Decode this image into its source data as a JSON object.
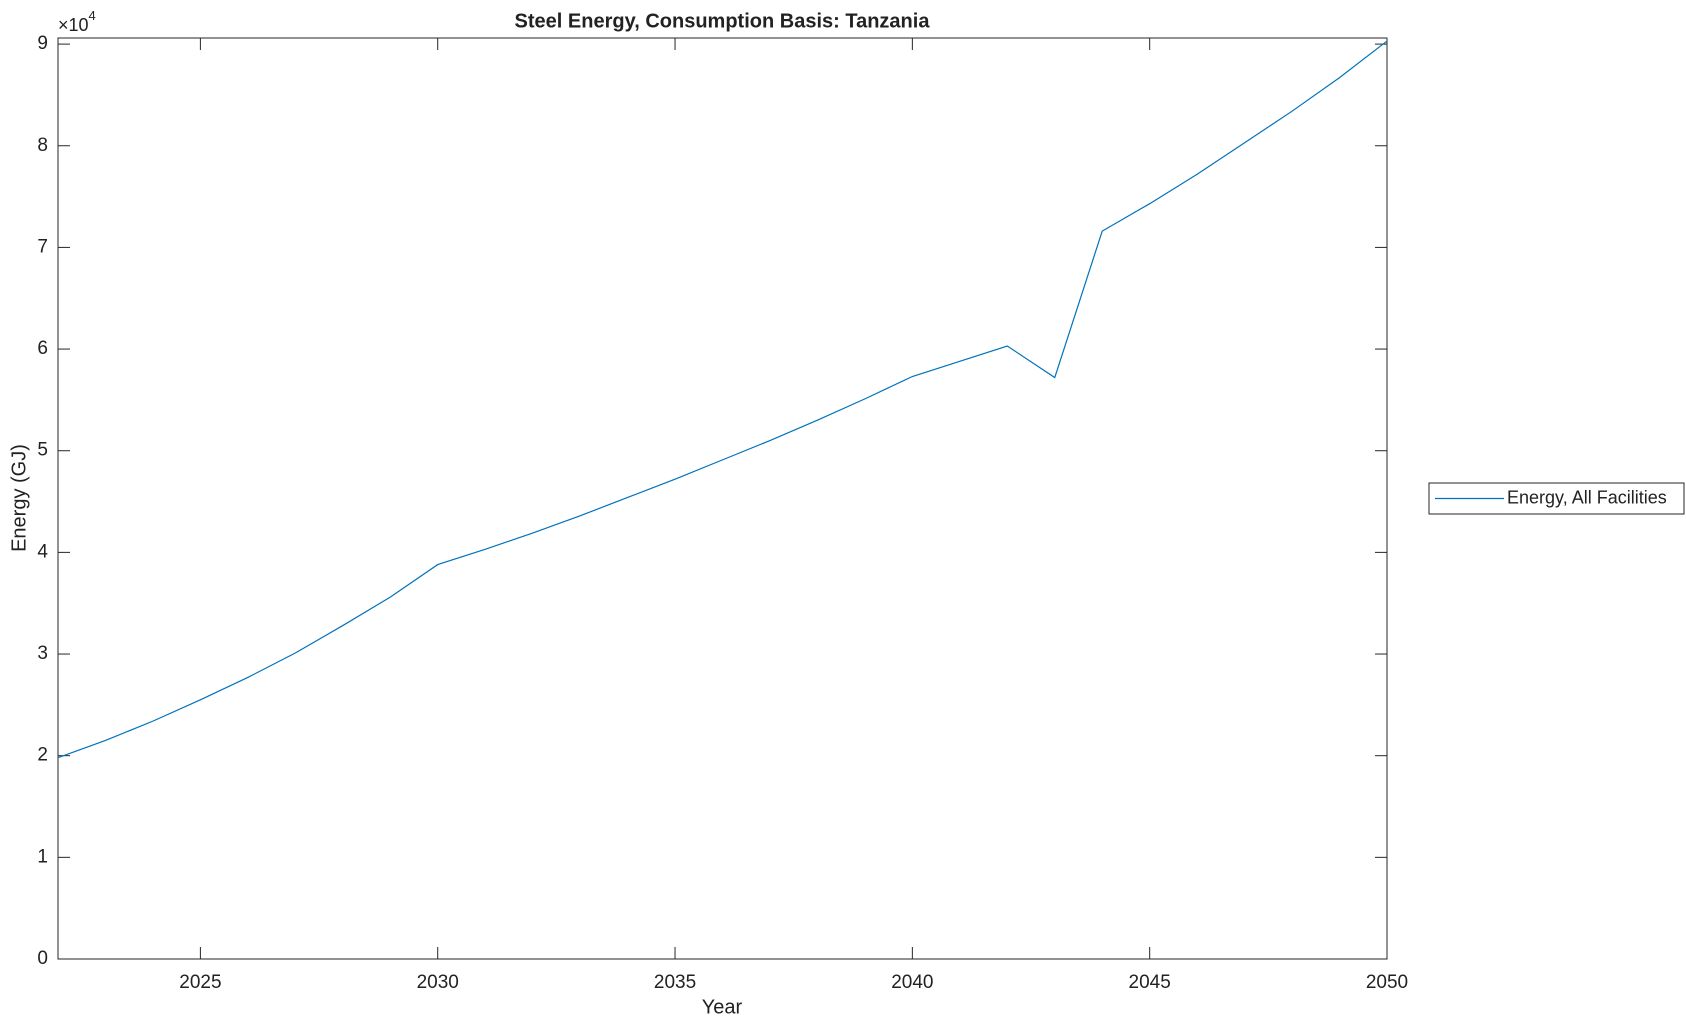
{
  "chart_data": {
    "type": "line",
    "title": "Steel Energy, Consumption Basis: Tanzania",
    "x_label": "Year",
    "y_label": "Energy (GJ)",
    "y_multiplier": {
      "base": "×10",
      "exponent": "4"
    },
    "x": [
      2022,
      2023,
      2024,
      2025,
      2026,
      2027,
      2028,
      2029,
      2030,
      2031,
      2032,
      2033,
      2034,
      2035,
      2036,
      2037,
      2038,
      2039,
      2040,
      2041,
      2042,
      2043,
      2044,
      2045,
      2046,
      2047,
      2048,
      2049,
      2050
    ],
    "series": [
      {
        "name": "Energy, All Facilities",
        "color": "#0072bd",
        "values": [
          1.98,
          2.15,
          2.34,
          2.55,
          2.77,
          3.01,
          3.28,
          3.56,
          3.88,
          4.03,
          4.19,
          4.36,
          4.54,
          4.72,
          4.91,
          5.1,
          5.3,
          5.51,
          5.73,
          5.88,
          6.03,
          5.72,
          7.16,
          7.43,
          7.72,
          8.03,
          8.34,
          8.67,
          9.03
        ]
      }
    ],
    "xlim": [
      2022,
      2050
    ],
    "xticks": [
      2025,
      2030,
      2035,
      2040,
      2045,
      2050
    ],
    "ylim": [
      0,
      9.06
    ],
    "yticks": [
      0,
      1,
      2,
      3,
      4,
      5,
      6,
      7,
      8,
      9
    ],
    "grid": false,
    "legend": "outside-right"
  }
}
